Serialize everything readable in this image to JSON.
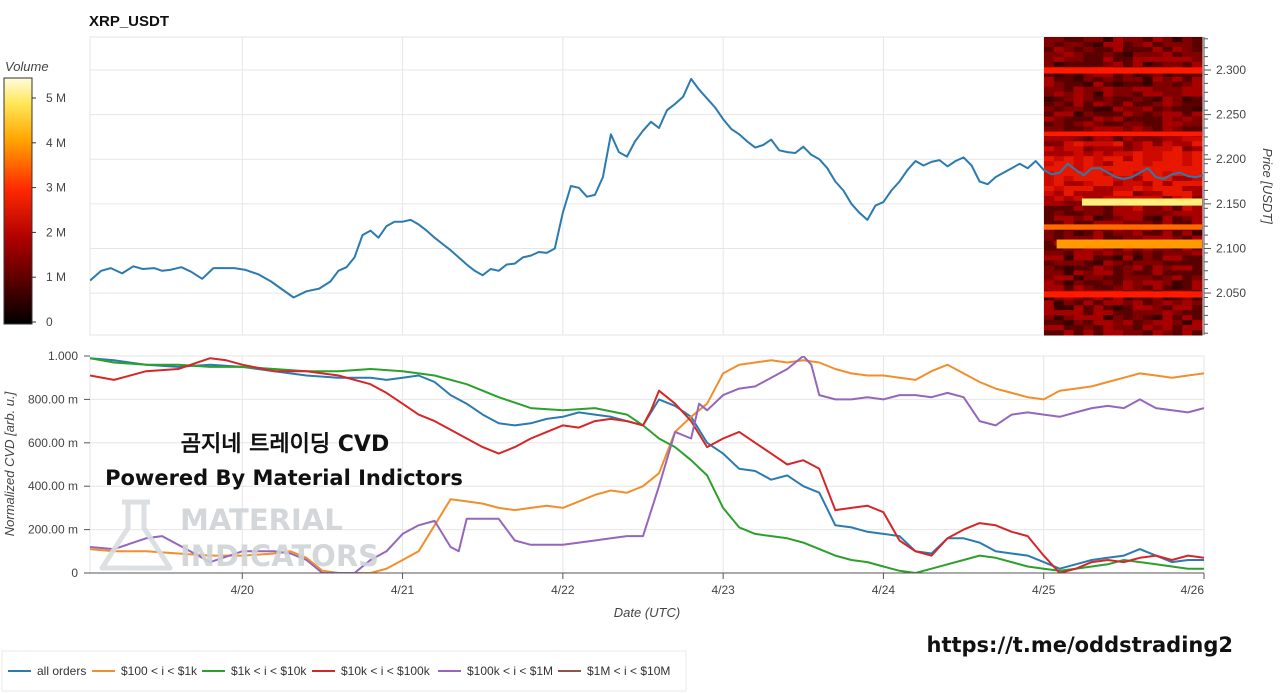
{
  "title": "XRP_USDT",
  "colorbar": {
    "label": "Volume",
    "ticks": [
      "0",
      "1 M",
      "2 M",
      "3 M",
      "4 M",
      "5 M"
    ],
    "tick_values": [
      0,
      1,
      2,
      3,
      4,
      5
    ]
  },
  "overlay": {
    "line1": "곰지네 트레이딩 CVD",
    "line2": "Powered By Material Indictors"
  },
  "watermark": {
    "line1": "MATERIAL",
    "line2": "INDICATORS"
  },
  "telegram_link": "https://t.me/oddstrading2",
  "chart_data": [
    {
      "type": "line",
      "id": "price",
      "ylabel": "Price [USDT]",
      "ylim": [
        2.003,
        2.337
      ],
      "xlim": [
        -0.95,
        6.0
      ],
      "yticks": [
        "2.050",
        "2.100",
        "2.150",
        "2.200",
        "2.250",
        "2.300"
      ],
      "ytick_values": [
        2.05,
        2.1,
        2.15,
        2.2,
        2.25,
        2.3
      ],
      "grid": true,
      "series": [
        {
          "color": "#2b7bb0",
          "x": [
            -0.95,
            -0.88,
            -0.82,
            -0.75,
            -0.68,
            -0.62,
            -0.55,
            -0.5,
            -0.45,
            -0.38,
            -0.32,
            -0.25,
            -0.18,
            -0.12,
            -0.05,
            0.02,
            0.1,
            0.18,
            0.25,
            0.32,
            0.4,
            0.48,
            0.55,
            0.6,
            0.65,
            0.7,
            0.75,
            0.8,
            0.85,
            0.9,
            0.95,
            1.0,
            1.05,
            1.1,
            1.15,
            1.2,
            1.25,
            1.3,
            1.35,
            1.4,
            1.45,
            1.5,
            1.55,
            1.6,
            1.65,
            1.7,
            1.75,
            1.8,
            1.85,
            1.9,
            1.95,
            2.0,
            2.05,
            2.1,
            2.15,
            2.2,
            2.25,
            2.3,
            2.35,
            2.4,
            2.45,
            2.5,
            2.55,
            2.6,
            2.65,
            2.7,
            2.75,
            2.8,
            2.85,
            2.9,
            2.95,
            3.0,
            3.05,
            3.1,
            3.15,
            3.2,
            3.25,
            3.3,
            3.35,
            3.4,
            3.45,
            3.5,
            3.55,
            3.6,
            3.65,
            3.7,
            3.75,
            3.8,
            3.85,
            3.9,
            3.95,
            4.0,
            4.05,
            4.1,
            4.15,
            4.2,
            4.25,
            4.3,
            4.35,
            4.4,
            4.45,
            4.5,
            4.55,
            4.6,
            4.65,
            4.7,
            4.75,
            4.8,
            4.85,
            4.9,
            4.95,
            5.0,
            5.05,
            5.1,
            5.15,
            5.2,
            5.25,
            5.3,
            5.35,
            5.4,
            5.45,
            5.5,
            5.55,
            5.6,
            5.65,
            5.7,
            5.75,
            5.8,
            5.85,
            5.9,
            5.95,
            6.0
          ],
          "y": [
            2.064,
            2.075,
            2.078,
            2.072,
            2.08,
            2.077,
            2.078,
            2.075,
            2.076,
            2.079,
            2.074,
            2.066,
            2.078,
            2.078,
            2.078,
            2.076,
            2.071,
            2.063,
            2.054,
            2.045,
            2.052,
            2.055,
            2.063,
            2.075,
            2.079,
            2.09,
            2.115,
            2.12,
            2.112,
            2.125,
            2.13,
            2.13,
            2.132,
            2.127,
            2.12,
            2.112,
            2.105,
            2.098,
            2.09,
            2.082,
            2.075,
            2.07,
            2.077,
            2.075,
            2.082,
            2.083,
            2.09,
            2.092,
            2.096,
            2.095,
            2.1,
            2.14,
            2.17,
            2.168,
            2.158,
            2.16,
            2.18,
            2.228,
            2.208,
            2.203,
            2.22,
            2.232,
            2.242,
            2.235,
            2.255,
            2.262,
            2.27,
            2.29,
            2.278,
            2.268,
            2.258,
            2.245,
            2.234,
            2.228,
            2.22,
            2.213,
            2.216,
            2.222,
            2.21,
            2.208,
            2.207,
            2.214,
            2.205,
            2.2,
            2.19,
            2.175,
            2.165,
            2.15,
            2.14,
            2.132,
            2.148,
            2.152,
            2.165,
            2.175,
            2.188,
            2.198,
            2.193,
            2.197,
            2.199,
            2.192,
            2.198,
            2.202,
            2.193,
            2.175,
            2.172,
            2.18,
            2.185,
            2.19,
            2.195,
            2.19,
            2.198,
            2.188,
            2.183,
            2.185,
            2.195,
            2.188,
            2.182,
            2.19,
            2.19,
            2.185,
            2.18,
            2.178,
            2.18,
            2.185,
            2.19,
            2.18,
            2.178,
            2.183,
            2.185,
            2.181,
            2.18,
            2.182
          ]
        }
      ]
    },
    {
      "type": "line",
      "id": "cvd",
      "ylabel": "Normalized CVD [arb. u.]",
      "xlabel": "Date (UTC)",
      "ylim": [
        0,
        1.0
      ],
      "xlim": [
        -0.95,
        6.0
      ],
      "yticks": [
        "0",
        "200.00 m",
        "400.00 m",
        "600.00 m",
        "800.00 m",
        "1.000"
      ],
      "ytick_values": [
        0,
        0.2,
        0.4,
        0.6,
        0.8,
        1.0
      ],
      "xticks": [
        "4/20",
        "4/21",
        "4/22",
        "4/23",
        "4/24",
        "4/25",
        "4/26"
      ],
      "xtick_values": [
        0,
        1,
        2,
        3,
        4,
        5,
        6
      ],
      "grid": true,
      "legend": "bottom",
      "series": [
        {
          "name": "all orders",
          "color": "#2b7bb0",
          "x": [
            -0.95,
            -0.8,
            -0.6,
            -0.4,
            -0.2,
            0.0,
            0.2,
            0.4,
            0.6,
            0.8,
            0.9,
            1.0,
            1.1,
            1.2,
            1.3,
            1.4,
            1.5,
            1.6,
            1.7,
            1.8,
            1.9,
            2.0,
            2.1,
            2.2,
            2.3,
            2.4,
            2.5,
            2.6,
            2.7,
            2.8,
            2.9,
            3.0,
            3.1,
            3.2,
            3.3,
            3.4,
            3.5,
            3.6,
            3.7,
            3.8,
            3.9,
            4.0,
            4.1,
            4.2,
            4.3,
            4.4,
            4.5,
            4.6,
            4.7,
            4.8,
            4.9,
            5.0,
            5.1,
            5.2,
            5.3,
            5.4,
            5.5,
            5.6,
            5.7,
            5.8,
            5.9,
            6.0
          ],
          "y": [
            0.99,
            0.98,
            0.96,
            0.95,
            0.96,
            0.95,
            0.93,
            0.91,
            0.9,
            0.9,
            0.89,
            0.9,
            0.91,
            0.88,
            0.82,
            0.78,
            0.73,
            0.69,
            0.68,
            0.69,
            0.71,
            0.72,
            0.74,
            0.73,
            0.72,
            0.7,
            0.68,
            0.8,
            0.77,
            0.72,
            0.6,
            0.55,
            0.48,
            0.47,
            0.43,
            0.45,
            0.4,
            0.37,
            0.22,
            0.21,
            0.19,
            0.18,
            0.17,
            0.1,
            0.09,
            0.16,
            0.16,
            0.14,
            0.1,
            0.09,
            0.08,
            0.05,
            0.02,
            0.04,
            0.06,
            0.07,
            0.08,
            0.11,
            0.08,
            0.05,
            0.06,
            0.06
          ]
        },
        {
          "name": "$100 < i < $1k",
          "color": "#f28e2b",
          "x": [
            -0.95,
            -0.8,
            -0.6,
            -0.4,
            -0.2,
            0.0,
            0.2,
            0.3,
            0.4,
            0.5,
            0.6,
            0.7,
            0.8,
            0.9,
            1.0,
            1.1,
            1.2,
            1.3,
            1.4,
            1.5,
            1.6,
            1.7,
            1.8,
            1.9,
            2.0,
            2.1,
            2.2,
            2.3,
            2.4,
            2.5,
            2.6,
            2.7,
            2.8,
            2.9,
            3.0,
            3.1,
            3.2,
            3.3,
            3.4,
            3.5,
            3.6,
            3.7,
            3.8,
            3.9,
            4.0,
            4.1,
            4.2,
            4.3,
            4.4,
            4.5,
            4.6,
            4.7,
            4.8,
            4.9,
            5.0,
            5.1,
            5.2,
            5.3,
            5.4,
            5.5,
            5.6,
            5.7,
            5.8,
            5.9,
            6.0
          ],
          "y": [
            0.11,
            0.1,
            0.1,
            0.09,
            0.08,
            0.08,
            0.09,
            0.1,
            0.07,
            0.01,
            0.0,
            0.0,
            0.0,
            0.02,
            0.06,
            0.1,
            0.22,
            0.34,
            0.33,
            0.32,
            0.3,
            0.29,
            0.3,
            0.31,
            0.3,
            0.33,
            0.36,
            0.38,
            0.37,
            0.4,
            0.46,
            0.65,
            0.72,
            0.78,
            0.92,
            0.96,
            0.97,
            0.98,
            0.97,
            0.98,
            0.97,
            0.94,
            0.92,
            0.91,
            0.91,
            0.9,
            0.89,
            0.93,
            0.96,
            0.92,
            0.88,
            0.85,
            0.83,
            0.81,
            0.8,
            0.84,
            0.85,
            0.86,
            0.88,
            0.9,
            0.92,
            0.91,
            0.9,
            0.91,
            0.92
          ]
        },
        {
          "name": "$1k < i < $10k",
          "color": "#2ca02c",
          "x": [
            -0.95,
            -0.8,
            -0.6,
            -0.4,
            -0.2,
            0.0,
            0.2,
            0.4,
            0.6,
            0.8,
            1.0,
            1.2,
            1.4,
            1.6,
            1.8,
            2.0,
            2.2,
            2.4,
            2.5,
            2.6,
            2.7,
            2.8,
            2.9,
            3.0,
            3.1,
            3.2,
            3.3,
            3.4,
            3.5,
            3.6,
            3.7,
            3.8,
            3.9,
            4.0,
            4.1,
            4.2,
            4.3,
            4.4,
            4.5,
            4.6,
            4.7,
            4.8,
            4.9,
            5.0,
            5.1,
            5.2,
            5.3,
            5.4,
            5.5,
            5.6,
            5.7,
            5.8,
            5.9,
            6.0
          ],
          "y": [
            0.99,
            0.97,
            0.96,
            0.96,
            0.95,
            0.95,
            0.94,
            0.93,
            0.93,
            0.94,
            0.93,
            0.91,
            0.87,
            0.81,
            0.76,
            0.75,
            0.76,
            0.73,
            0.68,
            0.62,
            0.58,
            0.52,
            0.45,
            0.3,
            0.21,
            0.18,
            0.17,
            0.16,
            0.14,
            0.11,
            0.08,
            0.06,
            0.05,
            0.03,
            0.01,
            0.0,
            0.02,
            0.04,
            0.06,
            0.08,
            0.07,
            0.05,
            0.03,
            0.02,
            0.01,
            0.02,
            0.03,
            0.04,
            0.06,
            0.05,
            0.04,
            0.03,
            0.02,
            0.02
          ]
        },
        {
          "name": "$10k < i < $100k",
          "color": "#d62728",
          "x": [
            -0.95,
            -0.8,
            -0.6,
            -0.4,
            -0.2,
            -0.1,
            0.0,
            0.2,
            0.4,
            0.6,
            0.8,
            0.9,
            1.0,
            1.1,
            1.2,
            1.3,
            1.4,
            1.5,
            1.6,
            1.7,
            1.8,
            1.9,
            2.0,
            2.1,
            2.2,
            2.3,
            2.4,
            2.5,
            2.55,
            2.6,
            2.7,
            2.8,
            2.9,
            3.0,
            3.1,
            3.2,
            3.3,
            3.4,
            3.5,
            3.6,
            3.7,
            3.8,
            3.9,
            4.0,
            4.1,
            4.2,
            4.3,
            4.4,
            4.5,
            4.6,
            4.7,
            4.8,
            4.9,
            5.0,
            5.1,
            5.2,
            5.3,
            5.4,
            5.5,
            5.6,
            5.7,
            5.8,
            5.9,
            6.0
          ],
          "y": [
            0.91,
            0.89,
            0.93,
            0.94,
            0.99,
            0.98,
            0.96,
            0.93,
            0.93,
            0.91,
            0.87,
            0.83,
            0.78,
            0.73,
            0.7,
            0.66,
            0.62,
            0.58,
            0.55,
            0.58,
            0.62,
            0.65,
            0.68,
            0.67,
            0.7,
            0.71,
            0.7,
            0.68,
            0.75,
            0.84,
            0.78,
            0.7,
            0.58,
            0.62,
            0.65,
            0.6,
            0.55,
            0.5,
            0.52,
            0.48,
            0.29,
            0.3,
            0.31,
            0.28,
            0.15,
            0.1,
            0.08,
            0.16,
            0.2,
            0.23,
            0.22,
            0.19,
            0.17,
            0.08,
            0.0,
            0.02,
            0.05,
            0.06,
            0.05,
            0.07,
            0.08,
            0.06,
            0.08,
            0.07
          ]
        },
        {
          "name": "$100k < i < $1M",
          "color": "#9467bd",
          "x": [
            -0.95,
            -0.8,
            -0.6,
            -0.5,
            -0.4,
            -0.2,
            0.0,
            0.2,
            0.3,
            0.4,
            0.5,
            0.6,
            0.7,
            0.8,
            0.9,
            1.0,
            1.1,
            1.2,
            1.3,
            1.35,
            1.4,
            1.5,
            1.6,
            1.7,
            1.8,
            1.9,
            2.0,
            2.1,
            2.2,
            2.3,
            2.4,
            2.5,
            2.6,
            2.7,
            2.8,
            2.85,
            2.9,
            3.0,
            3.1,
            3.2,
            3.3,
            3.4,
            3.5,
            3.55,
            3.6,
            3.7,
            3.8,
            3.9,
            4.0,
            4.1,
            4.2,
            4.3,
            4.4,
            4.5,
            4.6,
            4.7,
            4.8,
            4.9,
            5.0,
            5.1,
            5.2,
            5.3,
            5.4,
            5.5,
            5.6,
            5.7,
            5.8,
            5.9,
            6.0
          ],
          "y": [
            0.12,
            0.11,
            0.16,
            0.17,
            0.13,
            0.05,
            0.1,
            0.1,
            0.09,
            0.06,
            0.0,
            0.0,
            0.0,
            0.06,
            0.1,
            0.18,
            0.22,
            0.24,
            0.12,
            0.1,
            0.25,
            0.25,
            0.25,
            0.15,
            0.13,
            0.13,
            0.13,
            0.14,
            0.15,
            0.16,
            0.17,
            0.17,
            0.4,
            0.65,
            0.62,
            0.78,
            0.75,
            0.82,
            0.85,
            0.86,
            0.9,
            0.94,
            1.0,
            0.96,
            0.82,
            0.8,
            0.8,
            0.81,
            0.8,
            0.82,
            0.82,
            0.81,
            0.83,
            0.81,
            0.7,
            0.68,
            0.73,
            0.74,
            0.73,
            0.72,
            0.74,
            0.76,
            0.77,
            0.76,
            0.8,
            0.76,
            0.75,
            0.74,
            0.76
          ]
        },
        {
          "name": "$1M < i < $10M",
          "color": "#8c564b",
          "x": [],
          "y": []
        }
      ]
    }
  ]
}
